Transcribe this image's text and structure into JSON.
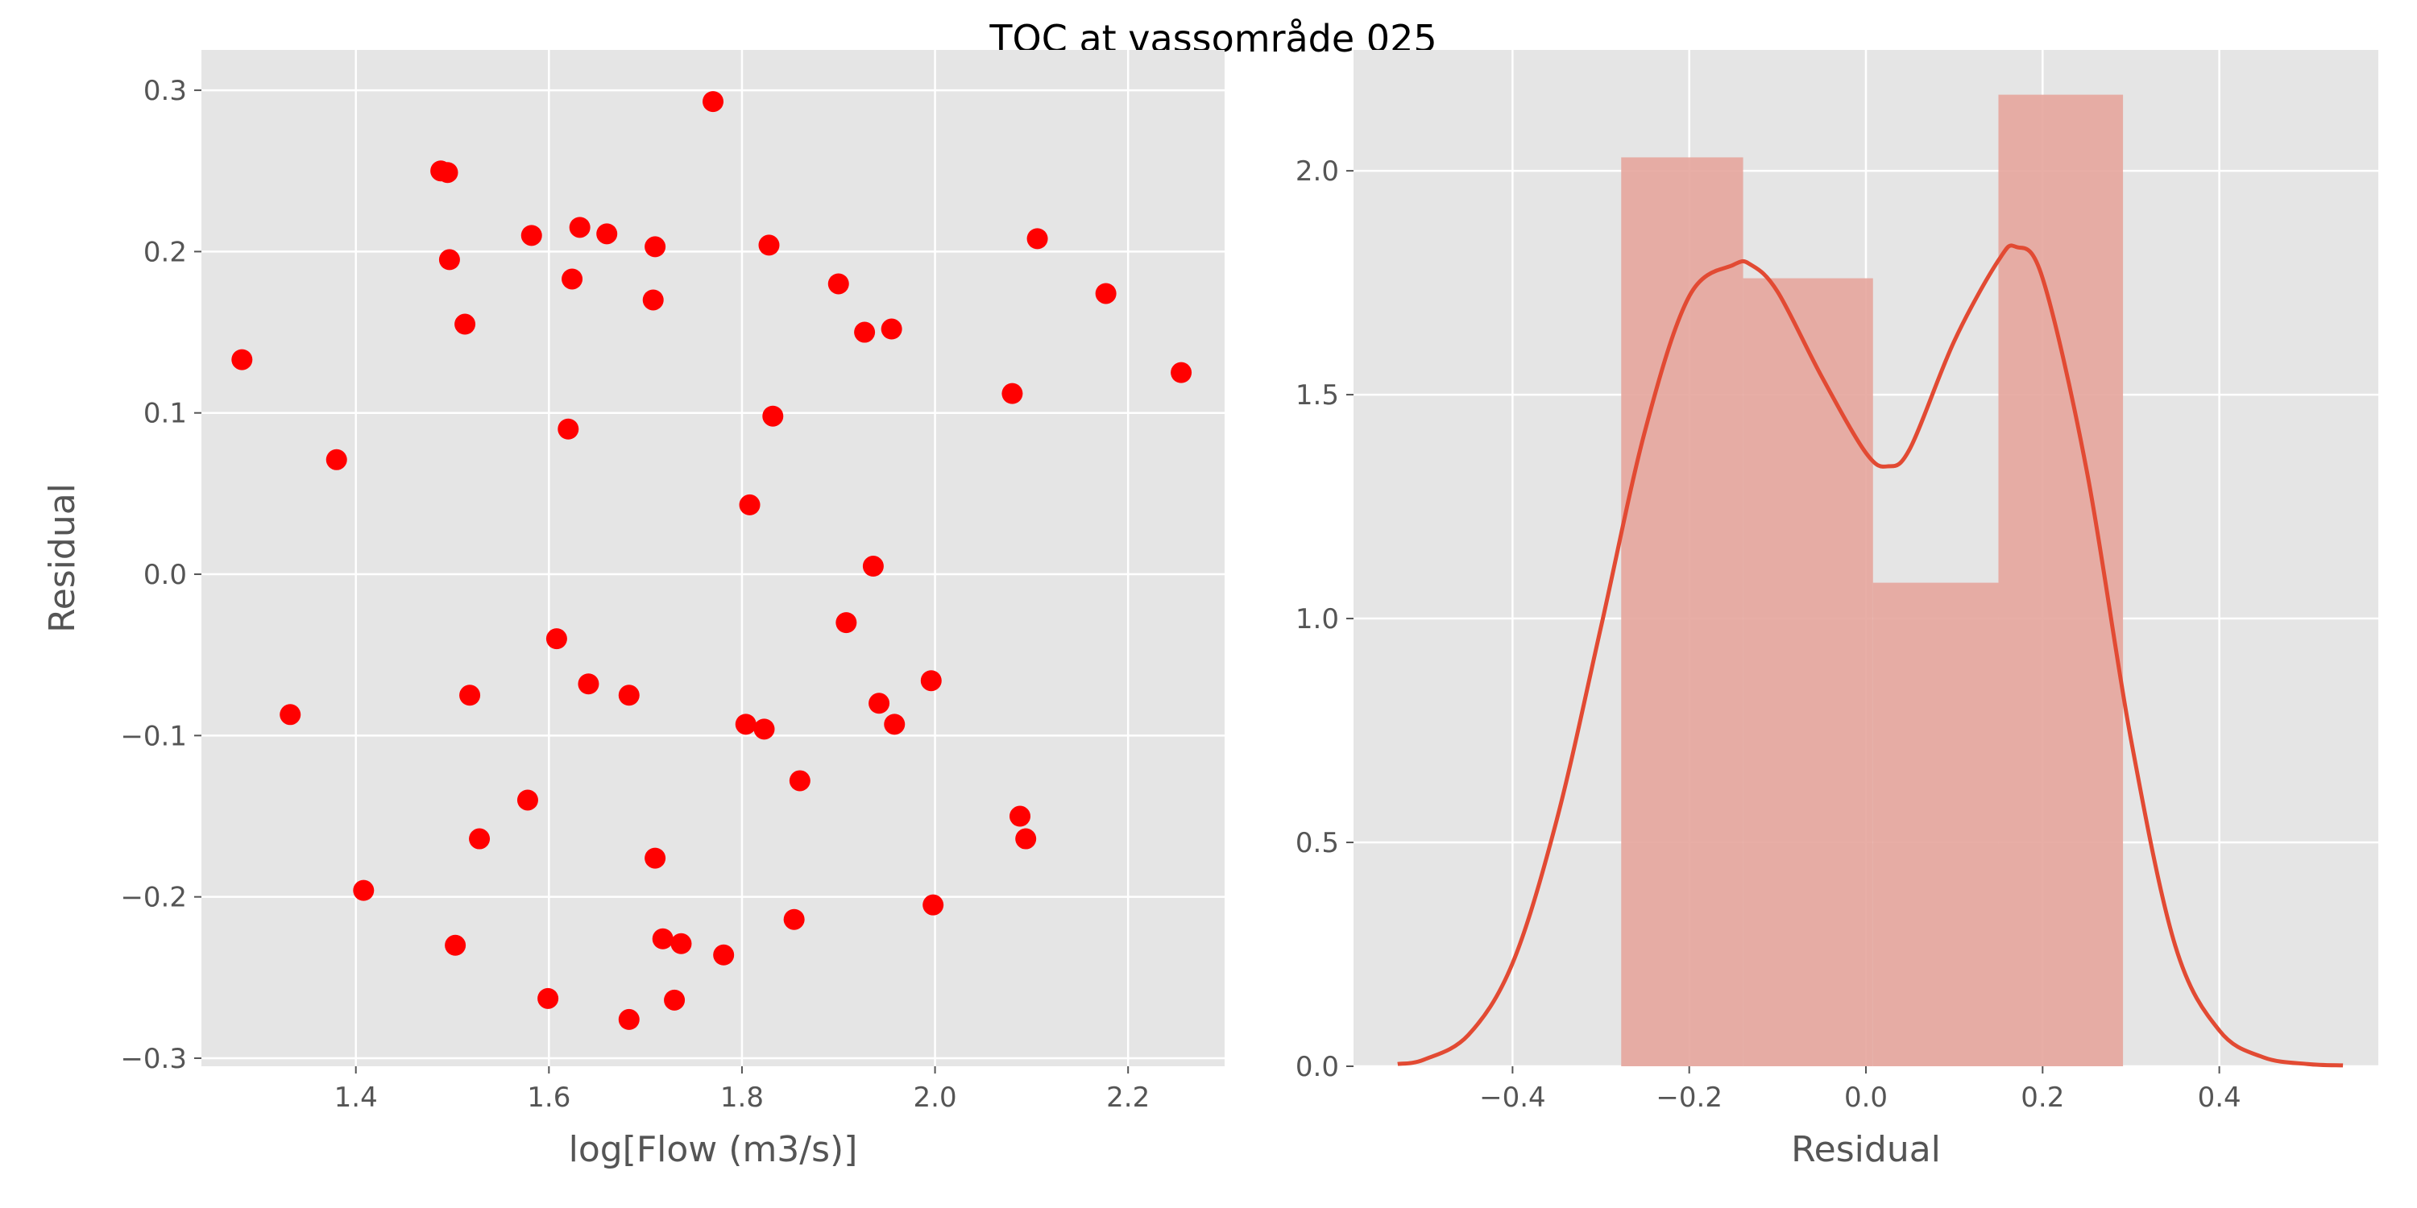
{
  "figure": {
    "title": "TOC at vassområde 025"
  },
  "chart_data": [
    {
      "type": "scatter",
      "title": "",
      "xlabel": "log[Flow (m3/s)]",
      "ylabel": "Residual",
      "xlim": [
        1.24,
        2.3
      ],
      "ylim": [
        -0.305,
        0.325
      ],
      "xticks": [
        1.4,
        1.6,
        1.8,
        2.0,
        2.2
      ],
      "xtick_labels": [
        "1.4",
        "1.6",
        "1.8",
        "2.0",
        "2.2"
      ],
      "yticks": [
        -0.3,
        -0.2,
        -0.1,
        0.0,
        0.1,
        0.2,
        0.3
      ],
      "ytick_labels": [
        "−0.3",
        "−0.2",
        "−0.1",
        "0.0",
        "0.1",
        "0.2",
        "0.3"
      ],
      "grid": true,
      "marker_color": "#ff0000",
      "points": [
        [
          1.282,
          0.133
        ],
        [
          1.332,
          -0.087
        ],
        [
          1.38,
          0.071
        ],
        [
          1.408,
          -0.196
        ],
        [
          1.488,
          0.25
        ],
        [
          1.495,
          0.249
        ],
        [
          1.497,
          0.195
        ],
        [
          1.503,
          -0.23
        ],
        [
          1.513,
          0.155
        ],
        [
          1.518,
          -0.075
        ],
        [
          1.528,
          -0.164
        ],
        [
          1.578,
          -0.14
        ],
        [
          1.582,
          0.21
        ],
        [
          1.599,
          -0.263
        ],
        [
          1.608,
          -0.04
        ],
        [
          1.62,
          0.09
        ],
        [
          1.624,
          0.183
        ],
        [
          1.632,
          0.215
        ],
        [
          1.641,
          -0.068
        ],
        [
          1.66,
          0.211
        ],
        [
          1.683,
          -0.075
        ],
        [
          1.683,
          -0.276
        ],
        [
          1.708,
          0.17
        ],
        [
          1.71,
          0.203
        ],
        [
          1.71,
          -0.176
        ],
        [
          1.718,
          -0.226
        ],
        [
          1.73,
          -0.264
        ],
        [
          1.737,
          -0.229
        ],
        [
          1.77,
          0.293
        ],
        [
          1.781,
          -0.236
        ],
        [
          1.804,
          -0.093
        ],
        [
          1.808,
          0.043
        ],
        [
          1.823,
          -0.096
        ],
        [
          1.828,
          0.204
        ],
        [
          1.832,
          0.098
        ],
        [
          1.854,
          -0.214
        ],
        [
          1.86,
          -0.128
        ],
        [
          1.9,
          0.18
        ],
        [
          1.908,
          -0.03
        ],
        [
          1.927,
          0.15
        ],
        [
          1.936,
          0.005
        ],
        [
          1.942,
          -0.08
        ],
        [
          1.955,
          0.152
        ],
        [
          1.958,
          -0.093
        ],
        [
          1.996,
          -0.066
        ],
        [
          1.998,
          -0.205
        ],
        [
          2.08,
          0.112
        ],
        [
          2.088,
          -0.15
        ],
        [
          2.094,
          -0.164
        ],
        [
          2.106,
          0.208
        ],
        [
          2.177,
          0.174
        ],
        [
          2.255,
          0.125
        ]
      ]
    },
    {
      "type": "histogram",
      "title": "",
      "xlabel": "Residual",
      "ylabel": "",
      "xlim": [
        -0.58,
        0.58
      ],
      "ylim": [
        0,
        2.27
      ],
      "xticks": [
        -0.4,
        -0.2,
        0.0,
        0.2,
        0.4
      ],
      "xtick_labels": [
        "−0.4",
        "−0.2",
        "0.0",
        "0.2",
        "0.4"
      ],
      "yticks": [
        0.0,
        0.5,
        1.0,
        1.5,
        2.0
      ],
      "ytick_labels": [
        "0.0",
        "0.5",
        "1.0",
        "1.5",
        "2.0"
      ],
      "grid": true,
      "bar_color": "#e5a59c",
      "kde_color": "#e24a33",
      "bins": [
        {
          "x0": -0.277,
          "x1": -0.139,
          "density": 2.03
        },
        {
          "x0": -0.139,
          "x1": 0.008,
          "density": 1.76
        },
        {
          "x0": 0.008,
          "x1": 0.15,
          "density": 1.08
        },
        {
          "x0": 0.15,
          "x1": 0.291,
          "density": 2.17
        }
      ],
      "kde": {
        "x": [
          -0.53,
          -0.5,
          -0.45,
          -0.4,
          -0.35,
          -0.3,
          -0.25,
          -0.2,
          -0.15,
          -0.13,
          -0.1,
          -0.05,
          0.0,
          0.025,
          0.05,
          0.1,
          0.15,
          0.17,
          0.2,
          0.25,
          0.3,
          0.35,
          0.4,
          0.45,
          0.5,
          0.54
        ],
        "y": [
          0.005,
          0.015,
          0.07,
          0.23,
          0.55,
          0.98,
          1.42,
          1.72,
          1.79,
          1.79,
          1.73,
          1.54,
          1.37,
          1.34,
          1.38,
          1.62,
          1.8,
          1.83,
          1.76,
          1.33,
          0.73,
          0.27,
          0.08,
          0.02,
          0.005,
          0.002
        ]
      }
    }
  ]
}
